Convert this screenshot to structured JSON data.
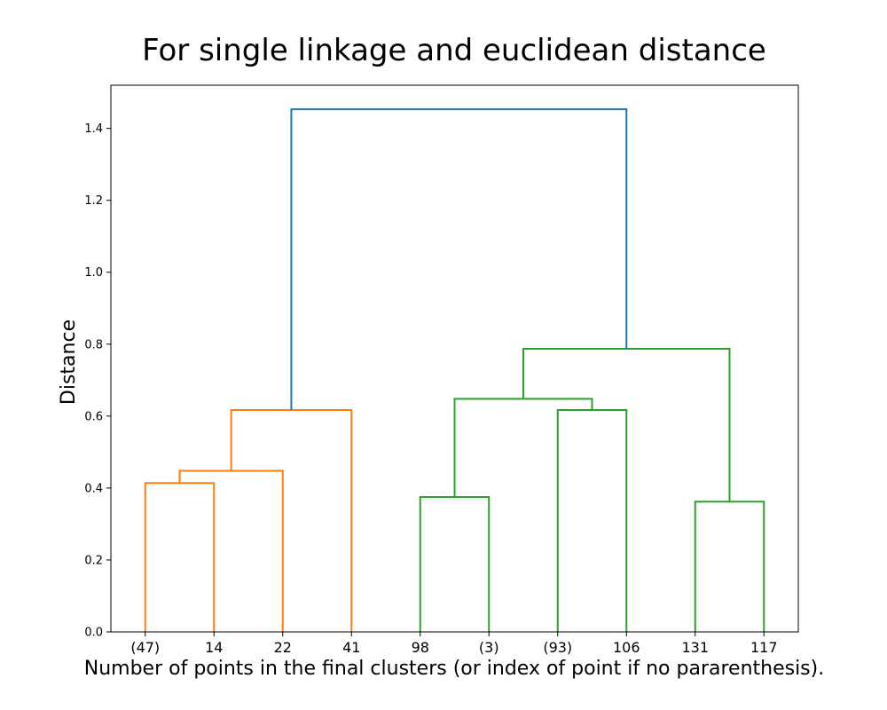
{
  "chart_data": {
    "type": "dendrogram",
    "title": "For single linkage and euclidean distance",
    "xlabel": "Number of points in the final clusters (or index of point if no pararenthesis).",
    "ylabel": "Distance",
    "ylim": [
      0,
      1.52
    ],
    "yticks": [
      "0.0",
      "0.2",
      "0.4",
      "0.6",
      "0.8",
      "1.0",
      "1.2",
      "1.4"
    ],
    "leaf_labels": [
      "(47)",
      "14",
      "22",
      "41",
      "98",
      "(3)",
      "(93)",
      "106",
      "131",
      "117"
    ],
    "grid": false,
    "colors": {
      "cluster_1": "#ff7f0e",
      "cluster_2": "#2ca02c",
      "above_threshold": "#1f77b4"
    },
    "links": [
      {
        "left_x": 1,
        "right_x": 2,
        "height": 0.414,
        "left_base": 0.0,
        "right_base": 0.0,
        "color_key": "cluster_1"
      },
      {
        "left_x": 1.5,
        "right_x": 3,
        "height": 0.448,
        "left_base": 0.414,
        "right_base": 0.0,
        "color_key": "cluster_1"
      },
      {
        "left_x": 2.25,
        "right_x": 4,
        "height": 0.617,
        "left_base": 0.448,
        "right_base": 0.0,
        "color_key": "cluster_1"
      },
      {
        "left_x": 5,
        "right_x": 6,
        "height": 0.375,
        "left_base": 0.0,
        "right_base": 0.0,
        "color_key": "cluster_2"
      },
      {
        "left_x": 7,
        "right_x": 8,
        "height": 0.617,
        "left_base": 0.0,
        "right_base": 0.0,
        "color_key": "cluster_2"
      },
      {
        "left_x": 5.5,
        "right_x": 7.5,
        "height": 0.648,
        "left_base": 0.375,
        "right_base": 0.617,
        "color_key": "cluster_2"
      },
      {
        "left_x": 9,
        "right_x": 10,
        "height": 0.362,
        "left_base": 0.0,
        "right_base": 0.0,
        "color_key": "cluster_2"
      },
      {
        "left_x": 6.5,
        "right_x": 9.5,
        "height": 0.787,
        "left_base": 0.648,
        "right_base": 0.362,
        "color_key": "cluster_2"
      },
      {
        "left_x": 3.125,
        "right_x": 8,
        "height": 1.453,
        "left_base": 0.617,
        "right_base": 0.787,
        "color_key": "above_threshold"
      }
    ]
  }
}
